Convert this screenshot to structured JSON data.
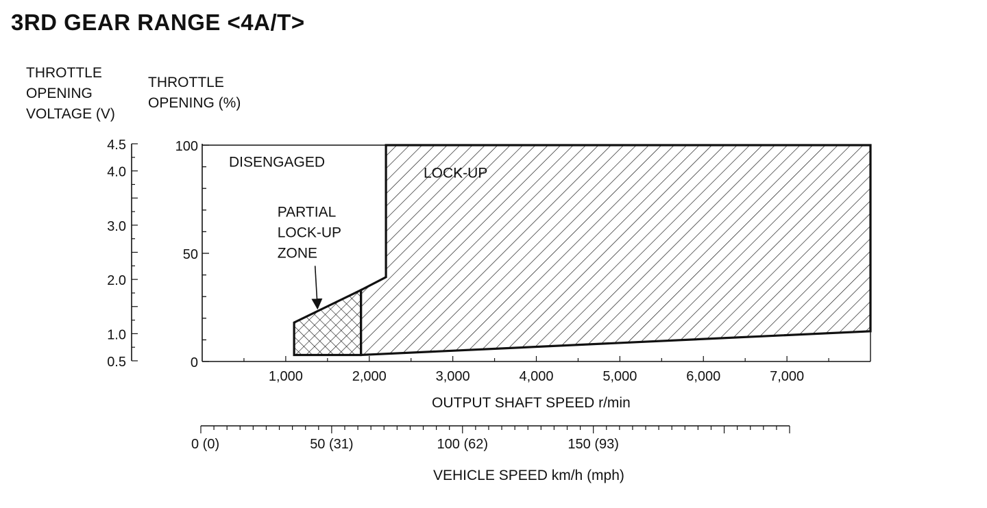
{
  "title": "3RD GEAR RANGE <4A/T>",
  "chart_data": {
    "type": "area",
    "title": "3RD GEAR RANGE <4A/T>",
    "y2label_lines": [
      "THROTTLE",
      "OPENING",
      "VOLTAGE (V)"
    ],
    "ylabel_lines": [
      "THROTTLE",
      "OPENING (%)"
    ],
    "xlabel": "OUTPUT SHAFT SPEED r/min",
    "x2label": "VEHICLE SPEED km/h (mph)",
    "xlim": [
      0,
      8000
    ],
    "ylim": [
      0,
      100
    ],
    "y_ticks": [
      {
        "value": 0,
        "label": "0"
      },
      {
        "value": 50,
        "label": "50"
      },
      {
        "value": 100,
        "label": "100"
      }
    ],
    "x_ticks": [
      {
        "value": 1000,
        "label": "1,000"
      },
      {
        "value": 2000,
        "label": "2,000"
      },
      {
        "value": 3000,
        "label": "3,000"
      },
      {
        "value": 4000,
        "label": "4,000"
      },
      {
        "value": 5000,
        "label": "5,000"
      },
      {
        "value": 6000,
        "label": "6,000"
      },
      {
        "value": 7000,
        "label": "7,000"
      }
    ],
    "voltage_ticks": [
      {
        "value": 0.5,
        "label": "0.5"
      },
      {
        "value": 1.0,
        "label": "1.0"
      },
      {
        "value": 2.0,
        "label": "2.0"
      },
      {
        "value": 3.0,
        "label": "3.0"
      },
      {
        "value": 4.0,
        "label": "4.0"
      },
      {
        "value": 4.5,
        "label": "4.5"
      }
    ],
    "voltage_range": [
      0.5,
      4.5
    ],
    "vehicle_speed_ticks": [
      {
        "value": 0,
        "label": "0 (0)"
      },
      {
        "value": 50,
        "label": "50 (31)"
      },
      {
        "value": 100,
        "label": "100 (62)"
      },
      {
        "value": 150,
        "label": "150 (93)"
      }
    ],
    "vehicle_speed_range": [
      0,
      225
    ],
    "regions": [
      {
        "name": "LOCK-UP",
        "pattern": "diagonal",
        "polygon": [
          [
            1900,
            3
          ],
          [
            1900,
            33
          ],
          [
            2200,
            39
          ],
          [
            2200,
            100
          ],
          [
            8000,
            100
          ],
          [
            8000,
            14
          ]
        ]
      },
      {
        "name": "PARTIAL LOCK-UP ZONE",
        "pattern": "crosshatch",
        "polygon": [
          [
            1100,
            3
          ],
          [
            1100,
            18
          ],
          [
            1900,
            33
          ],
          [
            1900,
            3
          ]
        ]
      }
    ],
    "annotations": [
      {
        "text_lines": [
          "DISENGAGED"
        ],
        "x": 320,
        "y": 90
      },
      {
        "text_lines": [
          "LOCK-UP"
        ],
        "x": 2650,
        "y": 85
      },
      {
        "text_lines": [
          "PARTIAL",
          "LOCK-UP",
          "ZONE"
        ],
        "x": 900,
        "y": 67,
        "arrow_to": [
          1380,
          25
        ]
      }
    ]
  }
}
